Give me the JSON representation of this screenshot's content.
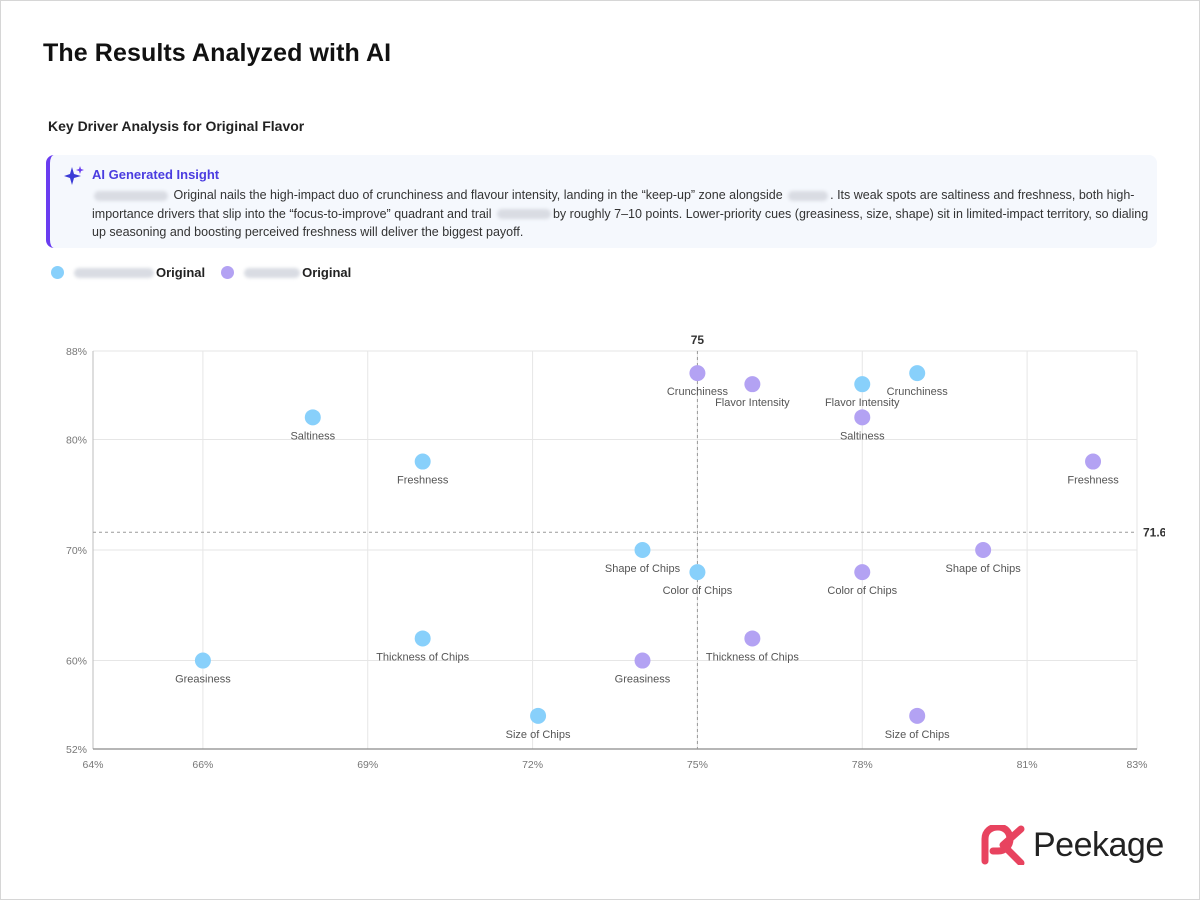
{
  "page": {
    "headline": "The Results Analyzed with AI",
    "card_title": "Key Driver Analysis for Original Flavor",
    "insight": {
      "title": "AI Generated Insight",
      "part1": "Original nails the high-impact duo of crunchiness and flavour intensity, landing in the “keep-up” zone alongside",
      "part2": ". Its weak spots are saltiness and freshness, both high-importance drivers that slip into the “focus-to-improve” quadrant and trail",
      "part3": "by roughly 7–10 points. Lower-priority cues (greasiness, size, shape) sit in limited-impact territory, so dialing up seasoning and boosting perceived freshness will deliver the biggest payoff."
    },
    "logo_text": "Peekage",
    "icons": {
      "sparkle": "sparkle-icon",
      "logo": "peekage-logo-icon"
    },
    "colors": {
      "series_a": "#88d0fb",
      "series_b": "#b3a2f3",
      "accent": "#6a3df0",
      "logo_pink": "#e8435f"
    }
  },
  "chart_data": {
    "type": "scatter",
    "x_axis": {
      "min": 64,
      "max": 83,
      "ticks": [
        64,
        66,
        69,
        72,
        75,
        78,
        81,
        83
      ],
      "suffix": "%"
    },
    "y_axis": {
      "min": 52,
      "max": 88,
      "ticks": [
        52,
        60,
        70,
        80,
        88
      ],
      "suffix": "%"
    },
    "reference_lines": {
      "x": 75,
      "x_label": "75",
      "y": 71.6,
      "y_label": "71.6"
    },
    "grid": true,
    "legend": "top-left",
    "series": [
      {
        "name": "Original",
        "color": "#88d0fb",
        "points": [
          {
            "label": "Saltiness",
            "x": 68,
            "y": 82
          },
          {
            "label": "Freshness",
            "x": 70,
            "y": 78
          },
          {
            "label": "Greasiness",
            "x": 66,
            "y": 60
          },
          {
            "label": "Thickness of Chips",
            "x": 70,
            "y": 62
          },
          {
            "label": "Size of Chips",
            "x": 72.1,
            "y": 55
          },
          {
            "label": "Shape of Chips",
            "x": 74,
            "y": 70
          },
          {
            "label": "Color of Chips",
            "x": 75,
            "y": 68
          },
          {
            "label": "Flavor Intensity",
            "x": 78,
            "y": 85
          },
          {
            "label": "Crunchiness",
            "x": 79,
            "y": 86
          }
        ]
      },
      {
        "name": "Original",
        "color": "#b3a2f3",
        "points": [
          {
            "label": "Crunchiness",
            "x": 75,
            "y": 86
          },
          {
            "label": "Flavor Intensity",
            "x": 76,
            "y": 85
          },
          {
            "label": "Saltiness",
            "x": 78,
            "y": 82
          },
          {
            "label": "Freshness",
            "x": 82.2,
            "y": 78
          },
          {
            "label": "Shape of Chips",
            "x": 80.2,
            "y": 70
          },
          {
            "label": "Color of Chips",
            "x": 78,
            "y": 68
          },
          {
            "label": "Thickness of Chips",
            "x": 76,
            "y": 62
          },
          {
            "label": "Greasiness",
            "x": 74,
            "y": 60
          },
          {
            "label": "Size of Chips",
            "x": 79,
            "y": 55
          }
        ]
      }
    ]
  }
}
